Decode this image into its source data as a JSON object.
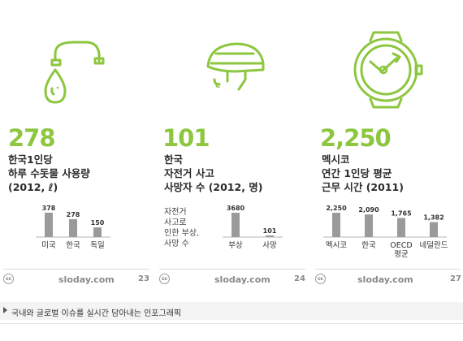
{
  "colors": {
    "accent": "#8dc63f",
    "bar": "#9a9a9a",
    "text": "#2b2b2b"
  },
  "panels": [
    {
      "icon": "faucet-water-drop-icon",
      "big_number": "278",
      "desc_lines": [
        "한국1인당",
        "하루 수돗물 사용량",
        "(2012, ℓ)"
      ],
      "side_label": "",
      "brand": "sloday.com",
      "page": "23"
    },
    {
      "icon": "bicycle-helmet-icon",
      "big_number": "101",
      "desc_lines": [
        "한국",
        "자전거 사고",
        "사망자 수 (2012, 명)"
      ],
      "side_label": [
        "자전거",
        "사고로",
        "인한 부상,",
        "사망 수"
      ],
      "brand": "sloday.com",
      "page": "24"
    },
    {
      "icon": "wristwatch-icon",
      "big_number": "2,250",
      "desc_lines": [
        "멕시코",
        "연간 1인당 평균",
        "근무 시간 (2011)"
      ],
      "side_label": "",
      "brand": "sloday.com",
      "page": "27"
    }
  ],
  "chart_data": [
    {
      "type": "bar",
      "categories": [
        "미국",
        "한국",
        "독일"
      ],
      "values": [
        378,
        278,
        150
      ],
      "value_labels": [
        "378",
        "278",
        "150"
      ],
      "ylim": [
        0,
        378
      ]
    },
    {
      "type": "bar",
      "categories": [
        "부상",
        "사망"
      ],
      "values": [
        3680,
        101
      ],
      "value_labels": [
        "3680",
        "101"
      ],
      "ylim": [
        0,
        3680
      ]
    },
    {
      "type": "bar",
      "categories": [
        [
          "멕시코"
        ],
        [
          "한국"
        ],
        [
          "OECD",
          "평균"
        ],
        [
          "네덜란드"
        ]
      ],
      "values": [
        2250,
        2090,
        1765,
        1382
      ],
      "value_labels": [
        "2,250",
        "2,090",
        "1,765",
        "1,382"
      ],
      "ylim": [
        0,
        2250
      ]
    }
  ],
  "cc_label": "cc",
  "caption": "국내와 글로벌 이슈를 실시간 담아내는 인포그래픽"
}
